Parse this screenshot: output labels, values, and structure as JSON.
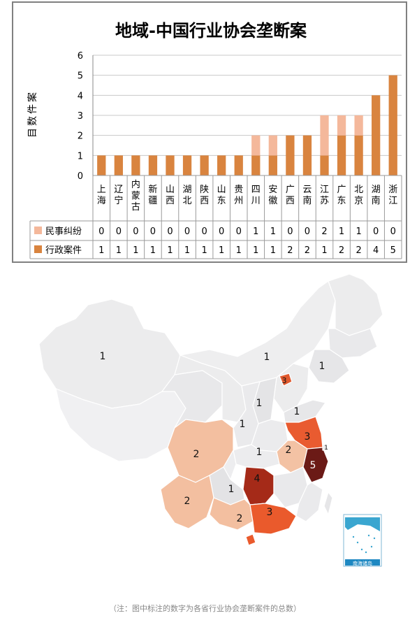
{
  "chart_data": {
    "type": "bar",
    "stacked": true,
    "title": "地域-中国行业协会垄断案",
    "ylabel": "案件数目",
    "ylim": [
      0,
      6
    ],
    "yticks": [
      "0",
      "1",
      "2",
      "3",
      "4",
      "5",
      "6"
    ],
    "categories": [
      "上海",
      "辽宁",
      "内蒙古",
      "新疆",
      "山西",
      "湖北",
      "陕西",
      "山东",
      "贵州",
      "四川",
      "安徽",
      "广西",
      "云南",
      "江苏",
      "广东",
      "北京",
      "湖南",
      "浙江"
    ],
    "series": [
      {
        "name": "民事纠纷",
        "color": "#F4B89B",
        "values": [
          0,
          0,
          0,
          0,
          0,
          0,
          0,
          0,
          0,
          1,
          1,
          0,
          0,
          2,
          1,
          1,
          0,
          0
        ]
      },
      {
        "name": "行政案件",
        "color": "#D9843F",
        "values": [
          1,
          1,
          1,
          1,
          1,
          1,
          1,
          1,
          1,
          1,
          1,
          2,
          2,
          1,
          2,
          2,
          4,
          5
        ]
      }
    ],
    "legend": "table-bottom",
    "grid": true
  },
  "map": {
    "labels": [
      "1",
      "1",
      "1",
      "3",
      "1",
      "1",
      "1",
      "3",
      "1",
      "2",
      "1",
      "5",
      "2",
      "1",
      "4",
      "2",
      "3",
      "2"
    ],
    "inset_label": "南海诸岛"
  },
  "note": "（注：图中标注的数字为各省行业协会垄断案件的总数）"
}
